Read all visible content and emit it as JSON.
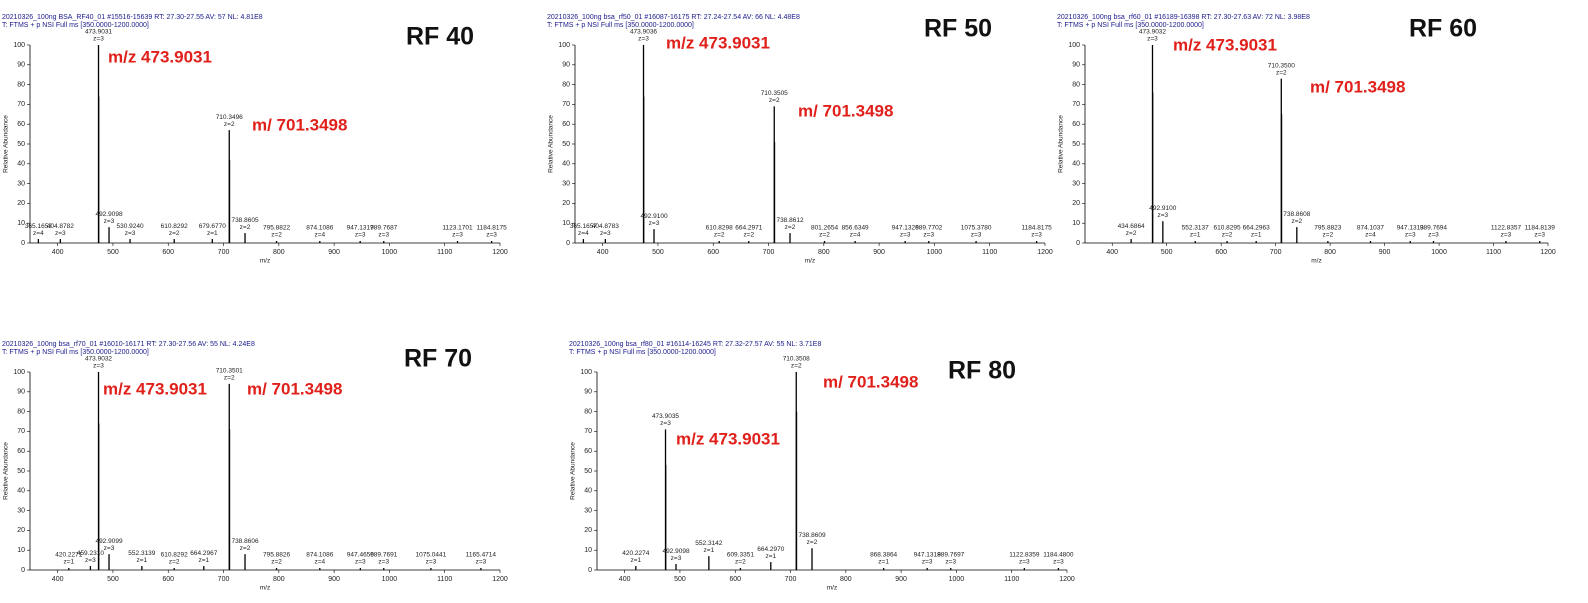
{
  "chart_data": [
    {
      "type": "stem",
      "title": "RF 40",
      "header": [
        "20210326_100ng BSA_RF40_01 #15516-15639  RT: 27.30-27.55  AV: 57  NL: 4.81E8",
        "T: FTMS + p NSI Full ms [350.0000-1200.0000]"
      ],
      "annotations": [
        "m/z 473.9031",
        "m/ 701.3498"
      ],
      "xlabel": "m/z",
      "ylabel": "Relative Abundance",
      "color": "#000000",
      "x": [
        365.1653,
        404.8782,
        473.9031,
        474.24,
        492.9098,
        530.924,
        610.8292,
        679.677,
        710.3496,
        710.85,
        738.8605,
        795.8822,
        874.1086,
        947.1317,
        989.7687,
        1123.1701,
        1184.8175
      ],
      "x_labels": [
        "365.1653",
        "404.8782",
        "473.9031",
        null,
        "492.9098",
        "530.9240",
        "610.8292",
        "679.6770",
        "710.3496",
        null,
        "738.8605",
        "795.8822",
        "874.1086",
        "947.1317",
        "989.7687",
        "1123.1701",
        "1184.8175"
      ],
      "values": [
        2,
        2,
        100,
        74,
        8,
        2,
        2,
        2,
        57,
        42,
        5,
        1,
        1,
        1,
        1,
        1,
        1
      ],
      "charges": [
        "z=4",
        "z=3",
        "z=3",
        null,
        "z=3",
        "z=3",
        "z=2",
        "z=1",
        "z=2",
        null,
        "z=2",
        "z=2",
        "z=4",
        "z=3",
        "z=3",
        "z=3",
        "z=3"
      ],
      "xlim": [
        350,
        1200
      ],
      "xticks": [
        400,
        500,
        600,
        700,
        800,
        900,
        1000,
        1100,
        1200
      ],
      "ylim": [
        0,
        100
      ],
      "yticks": [
        0,
        10,
        20,
        30,
        40,
        50,
        60,
        70,
        80,
        90,
        100
      ]
    },
    {
      "type": "stem",
      "title": "RF 50",
      "header": [
        "20210326_100ng bsa_rf50_01 #16087-16175  RT: 27.24-27.54  AV: 66  NL: 4.48E8",
        "T: FTMS + p NSI Full ms [350.0000-1200.0000]"
      ],
      "annotations": [
        "m/z 473.9031",
        "m/ 701.3498"
      ],
      "xlabel": "m/z",
      "ylabel": "Relative Abundance",
      "color": "#000000",
      "x": [
        365.1657,
        404.8783,
        473.9036,
        474.24,
        492.91,
        610.8298,
        664.2971,
        710.3505,
        710.85,
        738.8612,
        801.2654,
        856.6349,
        947.1326,
        989.7702,
        1075.378,
        1184.8175
      ],
      "x_labels": [
        "365.1657",
        "404.8783",
        "473.9036",
        null,
        "492.9100",
        "610.8298",
        "664.2971",
        "710.3505",
        null,
        "738.8612",
        "801.2654",
        "856.6349",
        "947.1326",
        "989.7702",
        "1075.3780",
        "1184.8175"
      ],
      "values": [
        2,
        2,
        100,
        74,
        7,
        1,
        1,
        69,
        51,
        5,
        1,
        1,
        1,
        1,
        1,
        1
      ],
      "charges": [
        "z=4",
        "z=3",
        "z=3",
        null,
        "z=3",
        "z=2",
        "z=2",
        "z=2",
        null,
        "z=2",
        "z=2",
        "z=4",
        "z=3",
        "z=3",
        "z=3",
        "z=3"
      ],
      "xlim": [
        350,
        1200
      ],
      "xticks": [
        400,
        500,
        600,
        700,
        800,
        900,
        1000,
        1100,
        1200
      ],
      "ylim": [
        0,
        100
      ],
      "yticks": [
        0,
        10,
        20,
        30,
        40,
        50,
        60,
        70,
        80,
        90,
        100
      ]
    },
    {
      "type": "stem",
      "title": "RF 60",
      "header": [
        "20210326_100ng bsa_rf60_01 #16189-16398  RT: 27.30-27.63  AV: 72  NL: 3.98E8",
        "T: FTMS + p NSI Full ms [350.0000-1200.0000]"
      ],
      "annotations": [
        "m/z 473.9031",
        "m/ 701.3498"
      ],
      "xlabel": "m/z",
      "ylabel": "Relative Abundance",
      "color": "#000000",
      "x": [
        434.6864,
        473.9032,
        474.24,
        492.91,
        552.3137,
        610.8295,
        664.2963,
        710.35,
        710.85,
        738.8608,
        795.8823,
        874.1037,
        947.1313,
        989.7694,
        1122.8357,
        1184.8139
      ],
      "x_labels": [
        "434.6864",
        "473.9032",
        null,
        "492.9100",
        "552.3137",
        "610.8295",
        "664.2963",
        "710.3500",
        null,
        "738.8608",
        "795.8823",
        "874.1037",
        "947.1313",
        "989.7694",
        "1122.8357",
        "1184.8139"
      ],
      "values": [
        2,
        100,
        76,
        11,
        1,
        1,
        1,
        83,
        65,
        8,
        1,
        1,
        1,
        1,
        1,
        1
      ],
      "charges": [
        "z=2",
        "z=3",
        null,
        "z=3",
        "z=1",
        "z=2",
        "z=1",
        "z=2",
        null,
        "z=2",
        "z=2",
        "z=4",
        "z=3",
        "z=3",
        "z=3",
        "z=3"
      ],
      "xlim": [
        350,
        1200
      ],
      "xticks": [
        400,
        500,
        600,
        700,
        800,
        900,
        1000,
        1100,
        1200
      ],
      "ylim": [
        0,
        100
      ],
      "yticks": [
        0,
        10,
        20,
        30,
        40,
        50,
        60,
        70,
        80,
        90,
        100
      ]
    },
    {
      "type": "stem",
      "title": "RF 70",
      "header": [
        "20210326_100ng bsa_rf70_01 #16010-16171  RT: 27.30-27.56  AV: 55  NL: 4.24E8",
        "T: FTMS + p NSI Full ms [350.0000-1200.0000]"
      ],
      "annotations": [
        "m/z 473.9031",
        "m/ 701.3498"
      ],
      "xlabel": "m/z",
      "ylabel": "Relative Abundance",
      "color": "#000000",
      "x": [
        420.2271,
        459.231,
        473.9032,
        474.24,
        492.9099,
        552.3139,
        610.8292,
        664.2967,
        710.3501,
        710.85,
        738.8606,
        795.8826,
        874.1086,
        947.4656,
        989.7691,
        1075.0441,
        1165.4714
      ],
      "x_labels": [
        "420.2271",
        "459.2310",
        "473.9032",
        null,
        "492.9099",
        "552.3139",
        "610.8292",
        "664.2967",
        "710.3501",
        null,
        "738.8606",
        "795.8826",
        "874.1086",
        "947.4656",
        "989.7691",
        "1075.0441",
        "1165.4714"
      ],
      "values": [
        1,
        2,
        100,
        74,
        8,
        2,
        1,
        2,
        94,
        71,
        8,
        1,
        1,
        1,
        1,
        1,
        1
      ],
      "charges": [
        "z=1",
        "z=3",
        "z=3",
        null,
        "z=3",
        "z=1",
        "z=2",
        "z=1",
        "z=2",
        null,
        "z=2",
        "z=2",
        "z=4",
        "z=3",
        "z=3",
        "z=3",
        "z=3"
      ],
      "xlim": [
        350,
        1200
      ],
      "xticks": [
        400,
        500,
        600,
        700,
        800,
        900,
        1000,
        1100,
        1200
      ],
      "ylim": [
        0,
        100
      ],
      "yticks": [
        0,
        10,
        20,
        30,
        40,
        50,
        60,
        70,
        80,
        90,
        100
      ]
    },
    {
      "type": "stem",
      "title": "RF 80",
      "header": [
        "20210326_100ng bsa_rf80_01 #16114-16245  RT: 27.32-27.57  AV: 55  NL: 3.71E8",
        "T: FTMS + p NSI Full ms [350.0000-1200.0000]"
      ],
      "annotations": [
        "m/z 473.9031",
        "m/ 701.3498"
      ],
      "xlabel": "m/z",
      "ylabel": "Relative Abundance",
      "color": "#000000",
      "x": [
        420.2274,
        473.9035,
        474.24,
        492.9098,
        552.3142,
        609.3351,
        664.297,
        710.3508,
        710.85,
        738.8609,
        868.3864,
        947.1318,
        989.7697,
        1122.8359,
        1184.48
      ],
      "x_labels": [
        "420.2274",
        "473.9035",
        null,
        "492.9098",
        "552.3142",
        "609.3351",
        "664.2970",
        "710.3508",
        null,
        "738.8609",
        "868.3864",
        "947.1318",
        "989.7697",
        "1122.8359",
        "1184.4800"
      ],
      "values": [
        2,
        71,
        53,
        3,
        7,
        1,
        4,
        100,
        80,
        11,
        1,
        1,
        1,
        1,
        1
      ],
      "charges": [
        "z=1",
        "z=3",
        null,
        "z=3",
        "z=1",
        "z=2",
        "z=1",
        "z=2",
        null,
        "z=2",
        "z=1",
        "z=3",
        "z=3",
        "z=3",
        "z=3"
      ],
      "xlim": [
        350,
        1200
      ],
      "xticks": [
        400,
        500,
        600,
        700,
        800,
        900,
        1000,
        1100,
        1200
      ],
      "ylim": [
        0,
        100
      ],
      "yticks": [
        0,
        10,
        20,
        30,
        40,
        50,
        60,
        70,
        80,
        90,
        100
      ]
    }
  ]
}
